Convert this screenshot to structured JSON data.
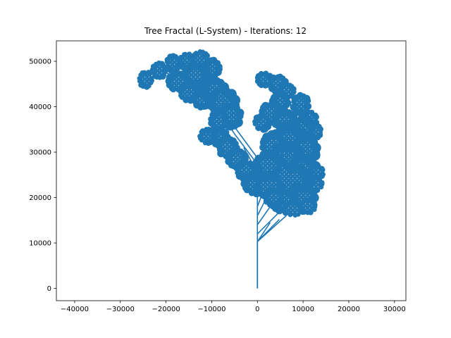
{
  "chart_data": {
    "type": "line",
    "title": "Tree Fractal (L-System) - Iterations: 12",
    "xlabel": "",
    "ylabel": "",
    "xlim": [
      -44000,
      32500
    ],
    "ylim": [
      -2700,
      54500
    ],
    "xticks": [
      -40000,
      -30000,
      -20000,
      -10000,
      0,
      10000,
      20000,
      30000
    ],
    "yticks": [
      0,
      10000,
      20000,
      30000,
      40000,
      50000
    ],
    "xtick_labels": [
      "−40000",
      "−30000",
      "−20000",
      "−10000",
      "0",
      "10000",
      "20000",
      "30000"
    ],
    "ytick_labels": [
      "0",
      "10000",
      "20000",
      "30000",
      "40000",
      "50000"
    ],
    "grid": false,
    "legend": "none",
    "series_color": "#1f77b4",
    "trunk": [
      [
        0,
        0
      ],
      [
        0,
        10300
      ]
    ],
    "branches": [
      [
        [
          0,
          10300
        ],
        [
          6300,
          16000
        ]
      ],
      [
        [
          0,
          10300
        ],
        [
          4800,
          15200
        ]
      ],
      [
        [
          0,
          10300
        ],
        [
          2800,
          14500
        ]
      ],
      [
        [
          0,
          12000
        ],
        [
          5500,
          17500
        ]
      ],
      [
        [
          0,
          14000
        ],
        [
          3500,
          19000
        ]
      ],
      [
        [
          0,
          16000
        ],
        [
          2000,
          20000
        ]
      ],
      [
        [
          0,
          18000
        ],
        [
          1500,
          22000
        ]
      ],
      [
        [
          0,
          20000
        ],
        [
          900,
          24000
        ]
      ],
      [
        [
          0,
          10300
        ],
        [
          0,
          24000
        ]
      ],
      [
        [
          3000,
          20000
        ],
        [
          -2000,
          26000
        ]
      ],
      [
        [
          2500,
          24000
        ],
        [
          -5000,
          34000
        ]
      ],
      [
        [
          2000,
          26000
        ],
        [
          -9000,
          41000
        ]
      ],
      [
        [
          -5000,
          34000
        ],
        [
          -12000,
          45000
        ]
      ],
      [
        [
          -9000,
          41000
        ],
        [
          -18000,
          47000
        ]
      ],
      [
        [
          -12000,
          45000
        ],
        [
          -22000,
          48000
        ]
      ],
      [
        [
          3000,
          22000
        ],
        [
          6000,
          33000
        ]
      ],
      [
        [
          6000,
          33000
        ],
        [
          4000,
          42000
        ]
      ],
      [
        [
          4000,
          42000
        ],
        [
          1500,
          46500
        ]
      ],
      [
        [
          6000,
          33000
        ],
        [
          9000,
          40000
        ]
      ],
      [
        [
          2000,
          22000
        ],
        [
          -3000,
          31000
        ]
      ]
    ],
    "clusters": [
      [
        -24500,
        46000,
        1500,
        1800
      ],
      [
        -21500,
        48000,
        1500,
        1800
      ],
      [
        -18500,
        49500,
        1500,
        1800
      ],
      [
        -15500,
        50000,
        1500,
        1800
      ],
      [
        -12500,
        50500,
        1700,
        1800
      ],
      [
        -10000,
        48500,
        1800,
        1900
      ],
      [
        -13500,
        47000,
        2500,
        2300
      ],
      [
        -17500,
        45500,
        2000,
        2000
      ],
      [
        -15000,
        43000,
        2000,
        1800
      ],
      [
        -12000,
        41500,
        1800,
        1800
      ],
      [
        -9500,
        43500,
        2500,
        2500
      ],
      [
        -7500,
        41000,
        2800,
        2800
      ],
      [
        -6000,
        38000,
        2500,
        2400
      ],
      [
        -8500,
        37000,
        1800,
        2000
      ],
      [
        -11000,
        33500,
        1700,
        1600
      ],
      [
        -8000,
        33000,
        1800,
        1800
      ],
      [
        -6500,
        31000,
        2000,
        2200
      ],
      [
        -4500,
        28500,
        2000,
        2000
      ],
      [
        -2500,
        26000,
        2000,
        2000
      ],
      [
        -500,
        23000,
        2500,
        2300
      ],
      [
        1500,
        46000,
        1600,
        1500
      ],
      [
        4500,
        45000,
        1800,
        1800
      ],
      [
        6500,
        43500,
        1600,
        1600
      ],
      [
        5000,
        41000,
        1800,
        1800
      ],
      [
        3000,
        38500,
        2200,
        2200
      ],
      [
        1000,
        36500,
        1700,
        1700
      ],
      [
        6000,
        37000,
        2200,
        2200
      ],
      [
        9500,
        40500,
        1800,
        2200
      ],
      [
        11500,
        37000,
        1600,
        2000
      ],
      [
        12500,
        34500,
        1500,
        1600
      ],
      [
        9500,
        35000,
        2500,
        2500
      ],
      [
        7000,
        32000,
        3500,
        3800
      ],
      [
        3500,
        31500,
        2500,
        2500
      ],
      [
        10500,
        30500,
        2600,
        3000
      ],
      [
        6000,
        28000,
        4000,
        3500
      ],
      [
        2500,
        27000,
        3000,
        2800
      ],
      [
        10000,
        26000,
        3000,
        3000
      ],
      [
        13000,
        25500,
        1500,
        1500
      ],
      [
        12500,
        23000,
        1800,
        1600
      ],
      [
        7000,
        23500,
        4500,
        3500
      ],
      [
        2500,
        22500,
        2800,
        2500
      ],
      [
        9500,
        20000,
        3200,
        2500
      ],
      [
        6000,
        19000,
        2800,
        2200
      ],
      [
        3500,
        20000,
        2000,
        1800
      ],
      [
        8000,
        17500,
        2500,
        1500
      ],
      [
        11000,
        18000,
        1800,
        1500
      ]
    ]
  }
}
